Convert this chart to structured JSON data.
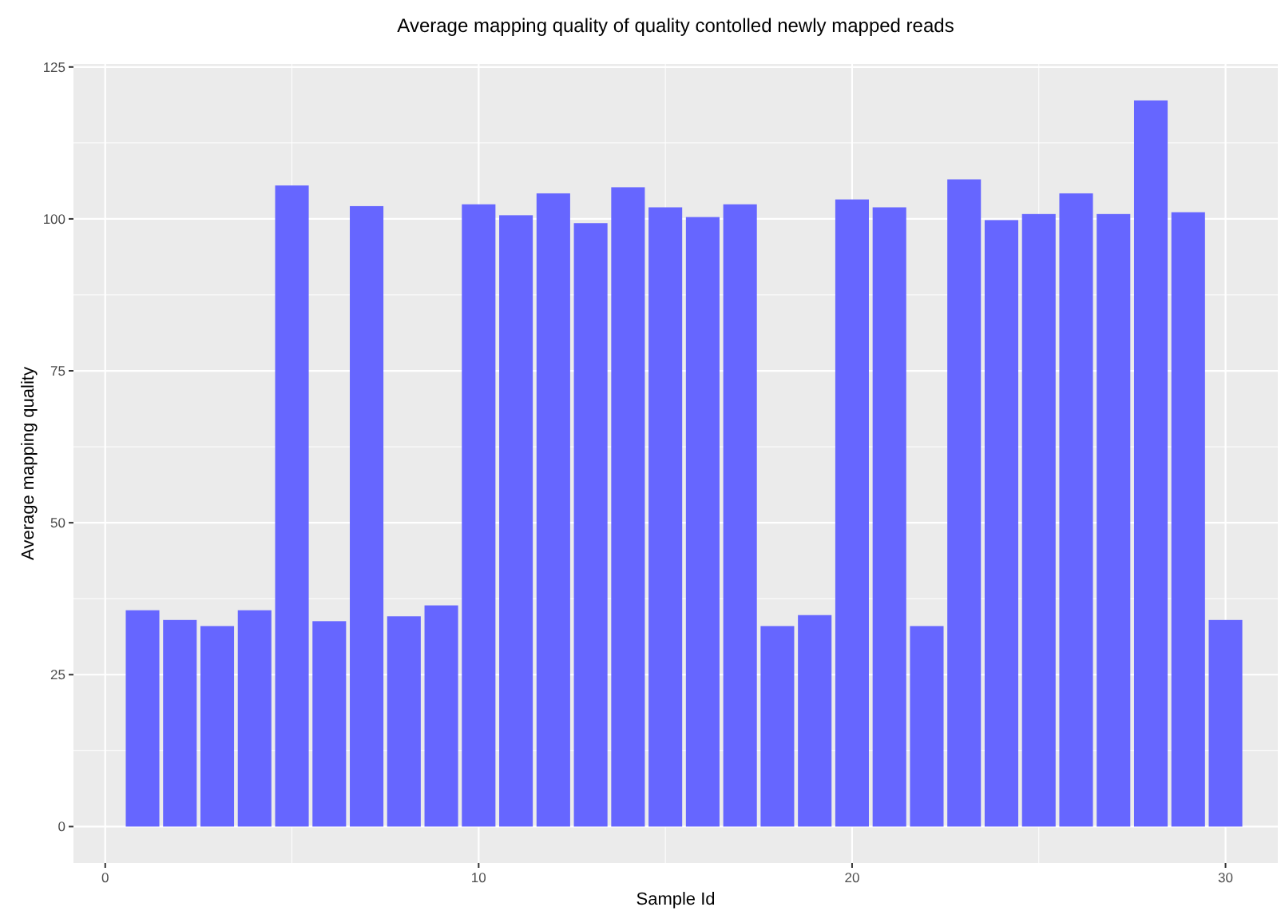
{
  "chart_data": {
    "type": "bar",
    "title": "Average mapping quality of quality contolled newly mapped reads",
    "xlabel": "Sample Id",
    "ylabel": "Average mapping quality",
    "x": [
      1,
      2,
      3,
      4,
      5,
      6,
      7,
      8,
      9,
      10,
      11,
      12,
      13,
      14,
      15,
      16,
      17,
      18,
      19,
      20,
      21,
      22,
      23,
      24,
      25,
      26,
      27,
      28,
      29,
      30
    ],
    "values": [
      35.6,
      34.0,
      33.0,
      35.6,
      105.5,
      33.8,
      102.1,
      34.6,
      36.4,
      102.4,
      100.6,
      104.2,
      99.3,
      105.2,
      101.9,
      100.3,
      102.4,
      33.0,
      34.8,
      103.2,
      101.9,
      33.0,
      106.5,
      99.8,
      100.8,
      104.2,
      100.8,
      119.5,
      101.1,
      34.0
    ],
    "color": "#6666ff",
    "xlim": [
      -0.85,
      31.4
    ],
    "ylim": [
      -6,
      125.5
    ],
    "xticks": [
      0,
      10,
      20,
      30
    ],
    "yticks": [
      0,
      25,
      50,
      75,
      100,
      125
    ],
    "grid": true
  }
}
